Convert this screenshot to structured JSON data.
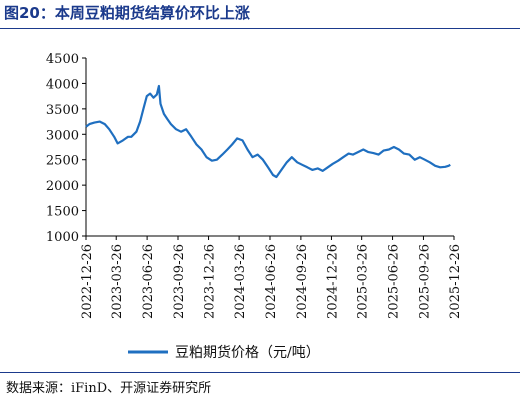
{
  "figure": {
    "title": "图20：本周豆粕期货结算价环比上涨",
    "source": "数据来源：iFinD、开源证券研究所"
  },
  "colors": {
    "series": "#1f6fc0",
    "title": "#1b3a8c"
  },
  "chart_data": {
    "type": "line",
    "title": "",
    "xlabel": "",
    "ylabel": "",
    "ylim": [
      1000,
      4500
    ],
    "yticks": [
      1000,
      1500,
      2000,
      2500,
      3000,
      3500,
      4000,
      4500
    ],
    "xlim": [
      "2022-12-26",
      "2025-12-26"
    ],
    "xticks": [
      "2022-12-26",
      "2023-03-26",
      "2023-06-26",
      "2023-09-26",
      "2023-12-26",
      "2024-03-26",
      "2024-06-26",
      "2024-09-26",
      "2024-12-26",
      "2025-03-26",
      "2025-06-26",
      "2025-09-26",
      "2025-12-26"
    ],
    "grid": false,
    "legend": "bottom-center",
    "series": [
      {
        "name": "豆粕期货价格（元/吨）",
        "points": [
          [
            "2022-12-26",
            3150
          ],
          [
            "2023-01-05",
            3200
          ],
          [
            "2023-01-20",
            3230
          ],
          [
            "2023-02-05",
            3250
          ],
          [
            "2023-02-20",
            3200
          ],
          [
            "2023-03-05",
            3100
          ],
          [
            "2023-03-20",
            2950
          ],
          [
            "2023-03-30",
            2820
          ],
          [
            "2023-04-15",
            2880
          ],
          [
            "2023-04-30",
            2950
          ],
          [
            "2023-05-10",
            2950
          ],
          [
            "2023-05-25",
            3050
          ],
          [
            "2023-06-05",
            3250
          ],
          [
            "2023-06-15",
            3500
          ],
          [
            "2023-06-25",
            3750
          ],
          [
            "2023-07-05",
            3800
          ],
          [
            "2023-07-15",
            3720
          ],
          [
            "2023-07-25",
            3780
          ],
          [
            "2023-07-31",
            3950
          ],
          [
            "2023-08-05",
            3600
          ],
          [
            "2023-08-15",
            3400
          ],
          [
            "2023-08-25",
            3300
          ],
          [
            "2023-09-05",
            3200
          ],
          [
            "2023-09-20",
            3100
          ],
          [
            "2023-10-05",
            3050
          ],
          [
            "2023-10-20",
            3100
          ],
          [
            "2023-11-05",
            2950
          ],
          [
            "2023-11-20",
            2800
          ],
          [
            "2023-12-05",
            2700
          ],
          [
            "2023-12-20",
            2550
          ],
          [
            "2024-01-05",
            2480
          ],
          [
            "2024-01-20",
            2500
          ],
          [
            "2024-02-05",
            2600
          ],
          [
            "2024-02-20",
            2700
          ],
          [
            "2024-03-05",
            2800
          ],
          [
            "2024-03-20",
            2920
          ],
          [
            "2024-04-05",
            2880
          ],
          [
            "2024-04-20",
            2700
          ],
          [
            "2024-05-05",
            2550
          ],
          [
            "2024-05-20",
            2600
          ],
          [
            "2024-06-05",
            2500
          ],
          [
            "2024-06-20",
            2350
          ],
          [
            "2024-07-05",
            2200
          ],
          [
            "2024-07-15",
            2160
          ],
          [
            "2024-07-30",
            2300
          ],
          [
            "2024-08-15",
            2450
          ],
          [
            "2024-08-30",
            2550
          ],
          [
            "2024-09-15",
            2450
          ],
          [
            "2024-09-30",
            2400
          ],
          [
            "2024-10-15",
            2350
          ],
          [
            "2024-10-30",
            2300
          ],
          [
            "2024-11-15",
            2330
          ],
          [
            "2024-11-30",
            2280
          ],
          [
            "2024-12-15",
            2350
          ],
          [
            "2024-12-30",
            2420
          ],
          [
            "2025-01-15",
            2480
          ],
          [
            "2025-01-30",
            2550
          ],
          [
            "2025-02-15",
            2620
          ],
          [
            "2025-02-28",
            2600
          ],
          [
            "2025-03-15",
            2650
          ],
          [
            "2025-03-31",
            2700
          ],
          [
            "2025-04-15",
            2650
          ],
          [
            "2025-04-30",
            2630
          ],
          [
            "2025-05-15",
            2600
          ],
          [
            "2025-05-30",
            2680
          ],
          [
            "2025-06-15",
            2700
          ],
          [
            "2025-06-30",
            2750
          ],
          [
            "2025-07-15",
            2700
          ],
          [
            "2025-07-30",
            2620
          ],
          [
            "2025-08-15",
            2600
          ],
          [
            "2025-08-31",
            2500
          ],
          [
            "2025-09-15",
            2550
          ],
          [
            "2025-09-30",
            2500
          ],
          [
            "2025-10-15",
            2450
          ],
          [
            "2025-10-31",
            2380
          ],
          [
            "2025-11-15",
            2350
          ],
          [
            "2025-11-30",
            2360
          ],
          [
            "2025-12-10",
            2380
          ],
          [
            "2025-12-15",
            2400
          ]
        ]
      }
    ]
  }
}
